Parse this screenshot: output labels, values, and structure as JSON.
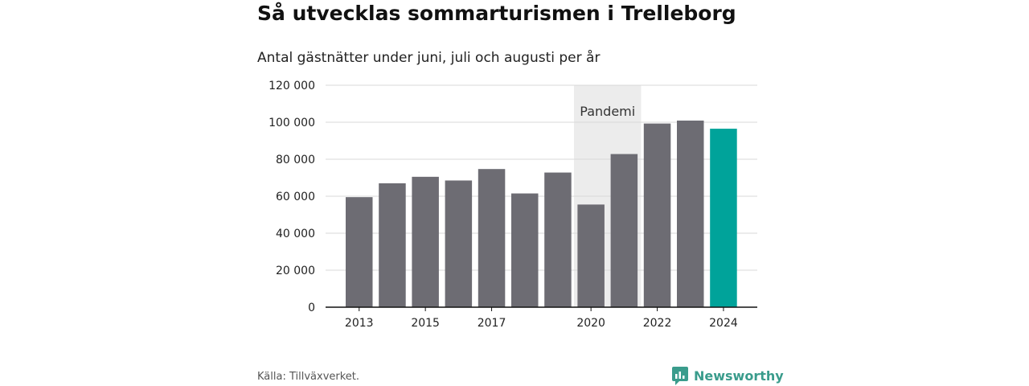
{
  "title": "Så utvecklas sommarturismen i Trelleborg",
  "subtitle": "Antal gästnätter under juni, juli och augusti per år",
  "source": "Källa: Tillväxverket.",
  "brand": "Newsworthy",
  "colors": {
    "bar": "#6d6c73",
    "highlight": "#00a39a",
    "band": "#ececec",
    "grid": "#d9d9d9",
    "axis": "#111111",
    "brand": "#3a9c8c"
  },
  "chart_data": {
    "type": "bar",
    "title": "Så utvecklas sommarturismen i Trelleborg",
    "subtitle": "Antal gästnätter under juni, juli och augusti per år",
    "categories": [
      "2013",
      "2014",
      "2015",
      "2016",
      "2017",
      "2018",
      "2019",
      "2020",
      "2021",
      "2022",
      "2023",
      "2024"
    ],
    "values": [
      59500,
      67000,
      70500,
      68500,
      74700,
      61500,
      72800,
      55500,
      82800,
      99300,
      100900,
      96500
    ],
    "highlight_category": "2024",
    "x_tick_labels": [
      "2013",
      "2015",
      "2017",
      "2020",
      "2022",
      "2024"
    ],
    "y_ticks": [
      0,
      20000,
      40000,
      60000,
      80000,
      100000,
      120000
    ],
    "y_tick_labels": [
      "0",
      "20 000",
      "40 000",
      "60 000",
      "80 000",
      "100 000",
      "120 000"
    ],
    "ylim": [
      0,
      120000
    ],
    "grid": true,
    "annotation": {
      "label": "Pandemi",
      "from": "2020",
      "to": "2021"
    }
  }
}
